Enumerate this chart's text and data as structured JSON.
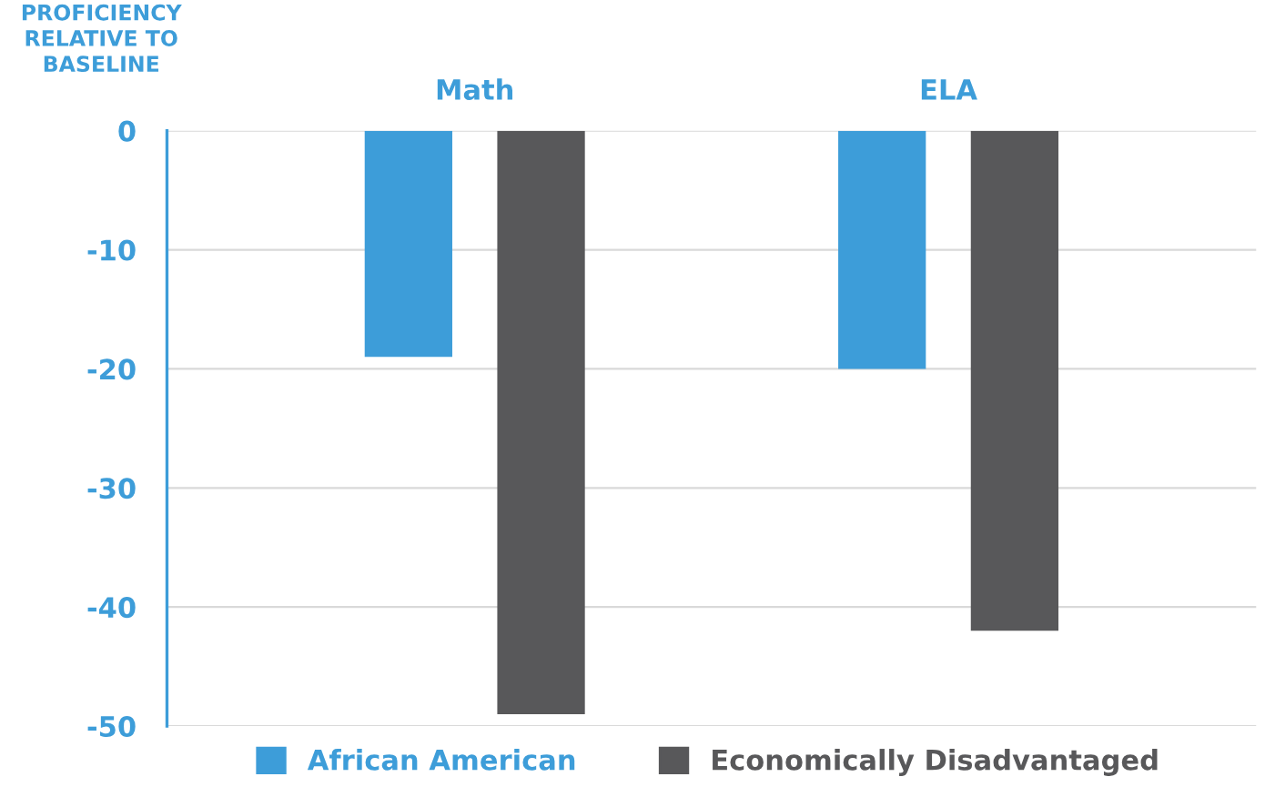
{
  "chart_data": {
    "type": "bar",
    "ylabel": "PROFICIENCY\nRELATIVE TO\nBASELINE",
    "categories": [
      "Math",
      "ELA"
    ],
    "series": [
      {
        "name": "African American",
        "color": "#3d9dd9",
        "values": [
          -19,
          -20
        ]
      },
      {
        "name": "Economically Disadvantaged",
        "color": "#58585a",
        "values": [
          -49,
          -42
        ]
      }
    ],
    "ylim": [
      -50,
      0
    ],
    "yticks": [
      0,
      -10,
      -20,
      -30,
      -40,
      -50
    ],
    "grid": "y",
    "legend": "bottom"
  }
}
